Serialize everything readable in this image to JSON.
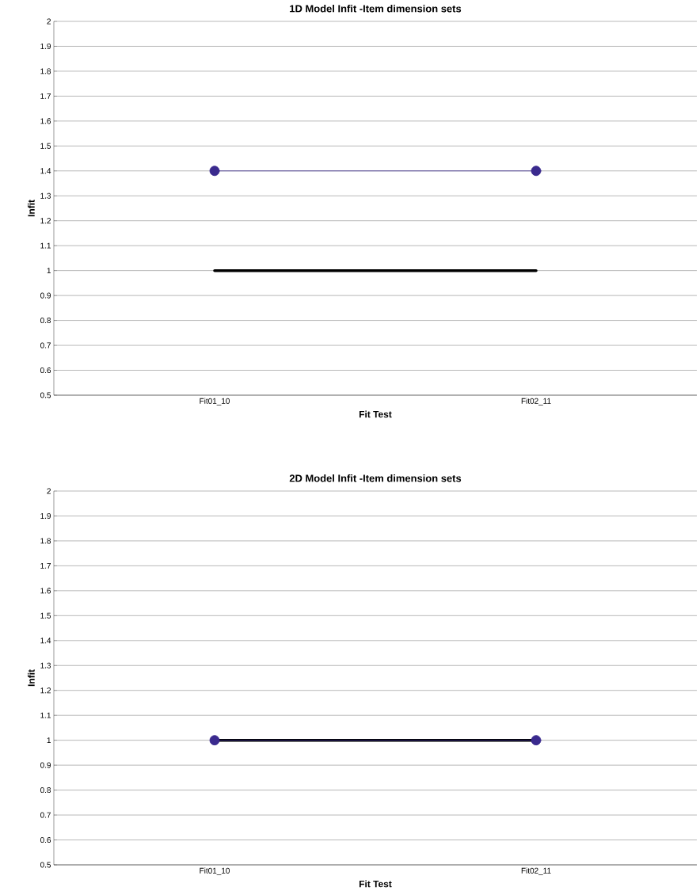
{
  "chart_data": [
    {
      "type": "line",
      "title": "1D Model Infit -Item dimension sets",
      "xlabel": "Fit Test",
      "ylabel": "Infit",
      "categories": [
        "Fit01_10",
        "Fit02_11"
      ],
      "ylim": [
        0.5,
        2
      ],
      "yticks": [
        0.5,
        0.6,
        0.7,
        0.8,
        0.9,
        1,
        1.1,
        1.2,
        1.3,
        1.4,
        1.5,
        1.6,
        1.7,
        1.8,
        1.9,
        2
      ],
      "grid": "y",
      "series": [
        {
          "color": "#3a2a8e",
          "values": [
            1.4,
            1.4
          ],
          "marker": "circle"
        },
        {
          "color": "#000000",
          "values": [
            1,
            1
          ],
          "marker": "none"
        }
      ]
    },
    {
      "type": "line",
      "title": "2D Model Infit -Item dimension sets",
      "xlabel": "Fit Test",
      "ylabel": "Infit",
      "categories": [
        "Fit01_10",
        "Fit02_11"
      ],
      "ylim": [
        0.5,
        2
      ],
      "yticks": [
        0.5,
        0.6,
        0.7,
        0.8,
        0.9,
        1,
        1.1,
        1.2,
        1.3,
        1.4,
        1.5,
        1.6,
        1.7,
        1.8,
        1.9,
        2
      ],
      "grid": "y",
      "series": [
        {
          "color": "#3a2a8e",
          "values": [
            1,
            1
          ],
          "marker": "circle"
        },
        {
          "color": "#000000",
          "values": [
            1,
            1
          ],
          "marker": "none"
        }
      ]
    }
  ]
}
